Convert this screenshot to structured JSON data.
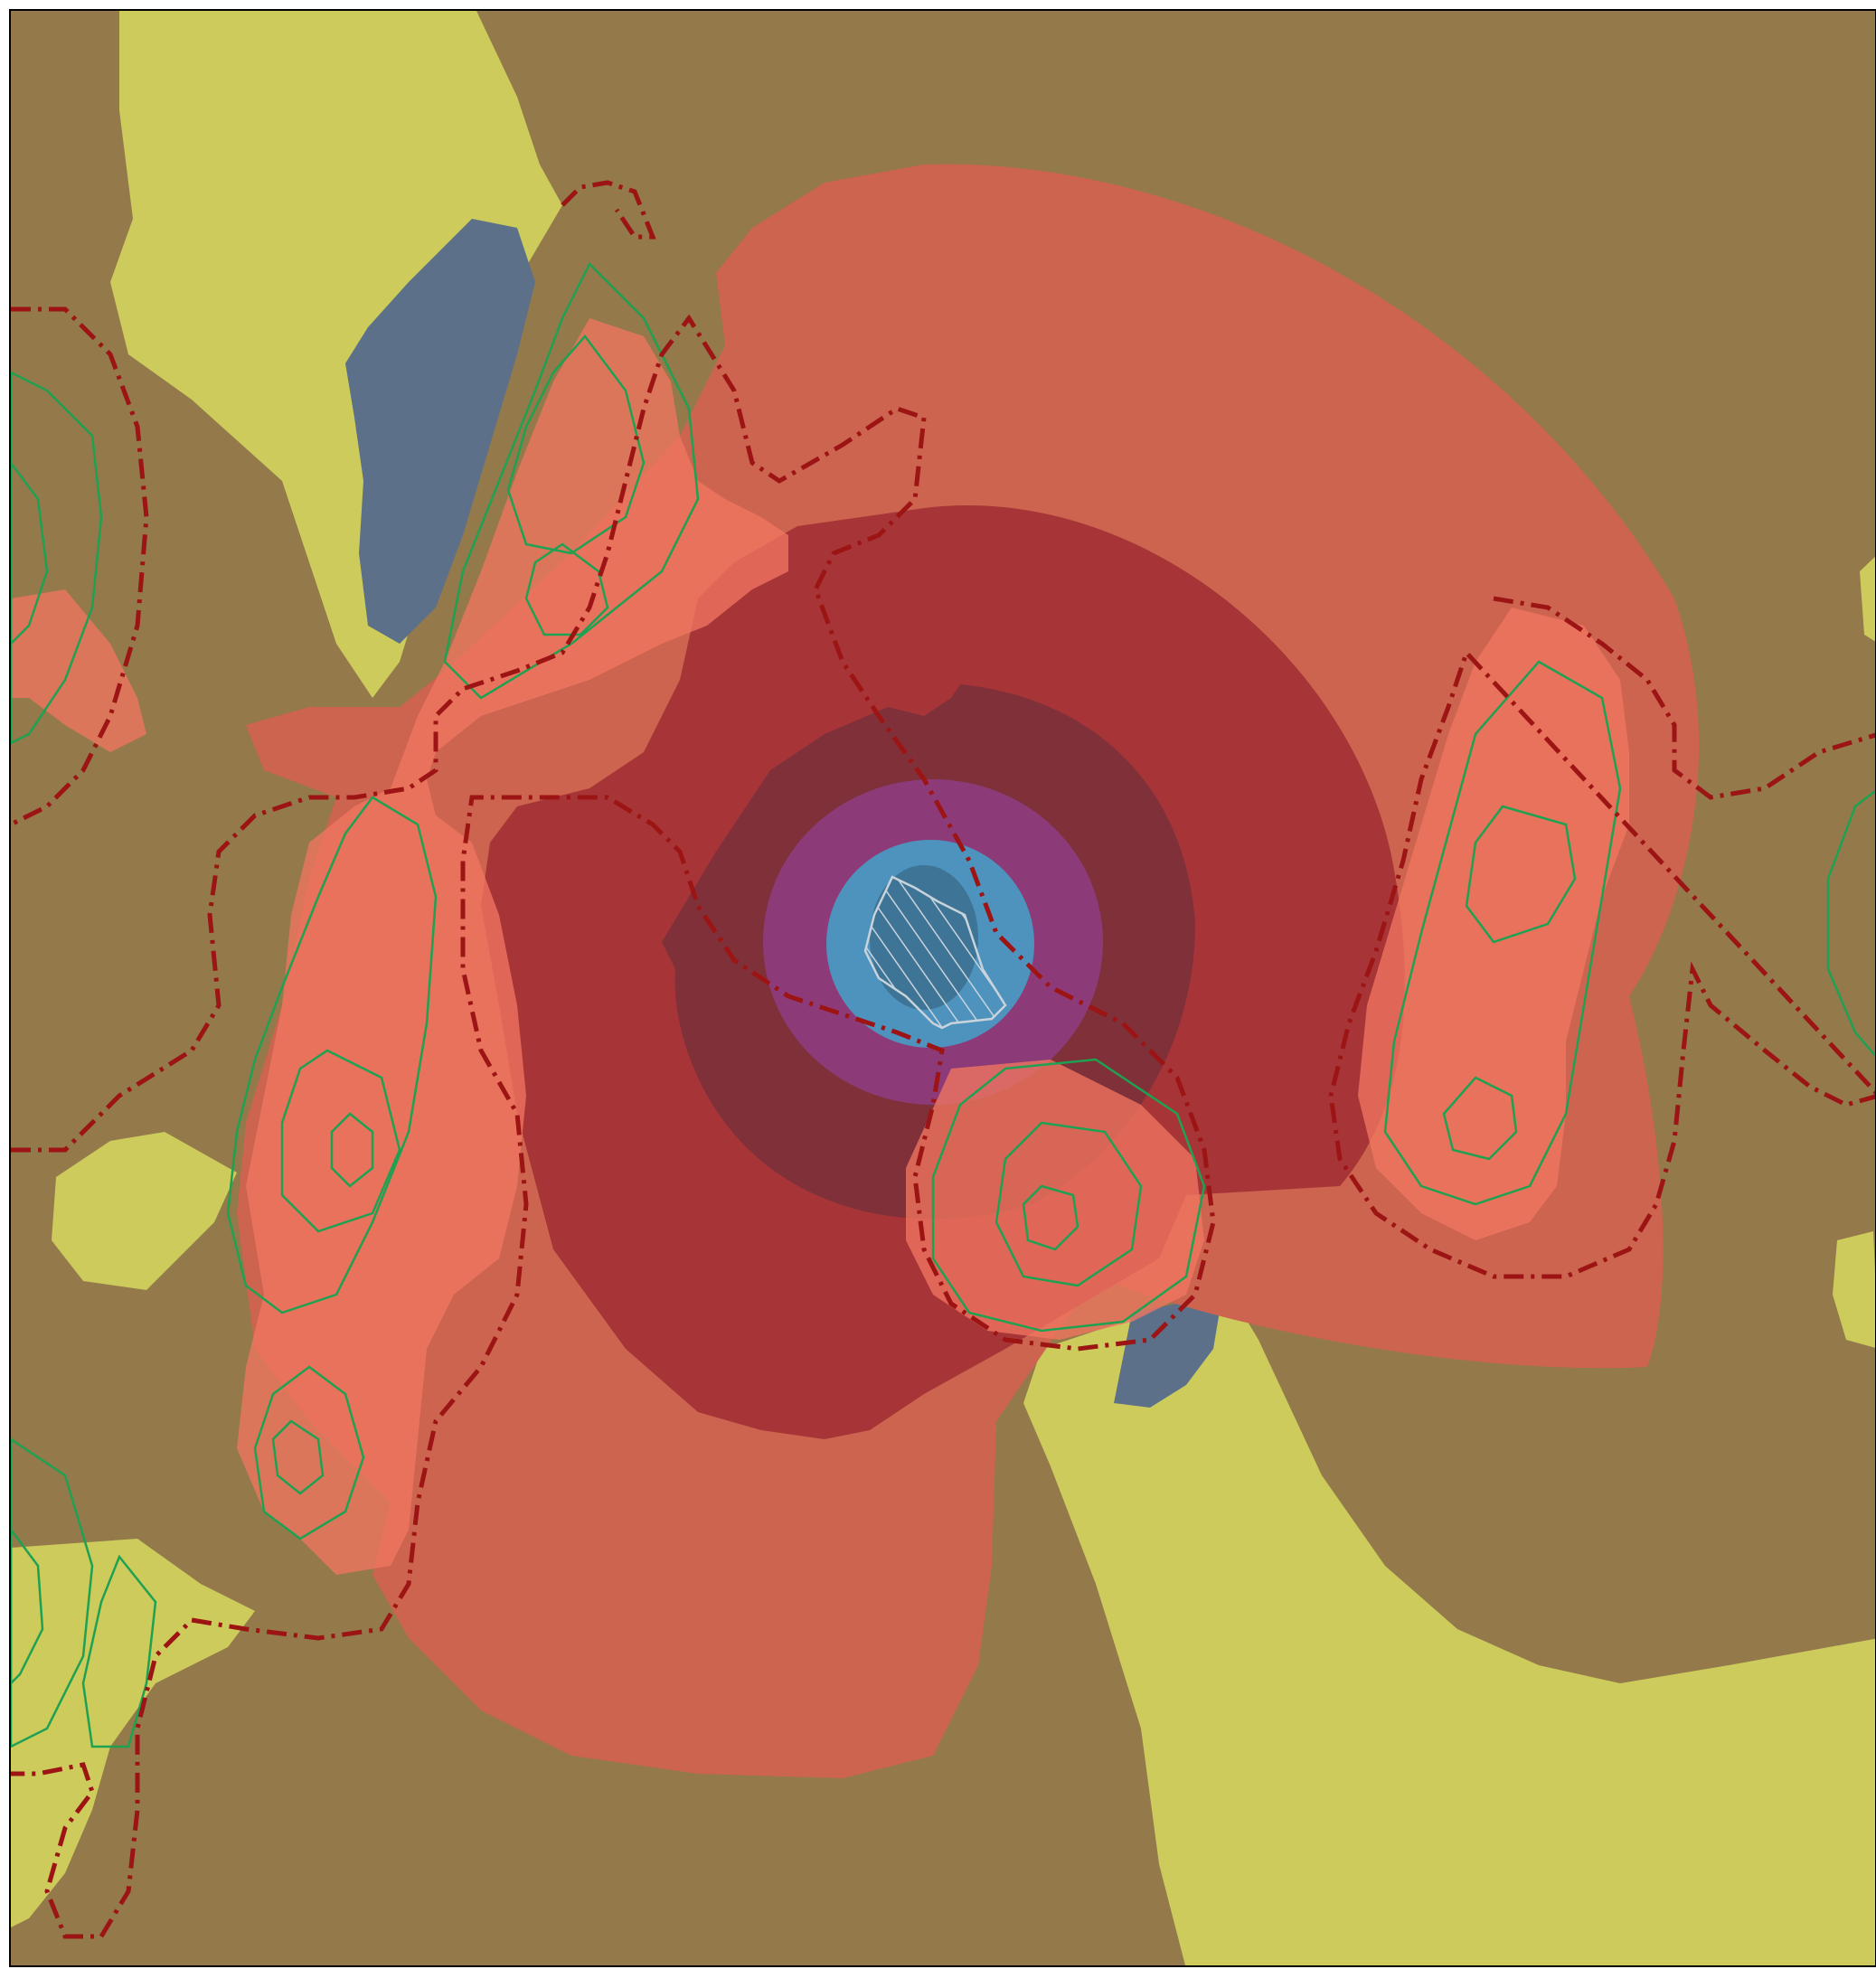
{
  "map": {
    "colors": {
      "background_land": "#94794a",
      "open_area": "#cccb5c",
      "water": "#5c7189",
      "zone_outer": "#cd644f",
      "zone_mid": "#a73538",
      "zone_inner": "#7f3039",
      "zone_core": "#8d3b78",
      "zone_center": "#4e93bd",
      "zone_center_dark": "#3c6f8e",
      "forest_overlay": "#ef7660",
      "contour": "#1fa152",
      "boundary": "#9c1414",
      "hatch": "#c8d3dc"
    },
    "layers": [
      {
        "id": "background",
        "icon": "terrain-fill"
      },
      {
        "id": "open-areas",
        "icon": "field-fill"
      },
      {
        "id": "water-bodies",
        "icon": "water-fill"
      },
      {
        "id": "impact-zones",
        "icon": "concentric-zones"
      },
      {
        "id": "forest-patches",
        "icon": "forest-fill"
      },
      {
        "id": "contours",
        "icon": "contour-line"
      },
      {
        "id": "protected-boundary",
        "icon": "dash-dot-line"
      },
      {
        "id": "site-footprint",
        "icon": "hatched-polygon"
      }
    ]
  }
}
